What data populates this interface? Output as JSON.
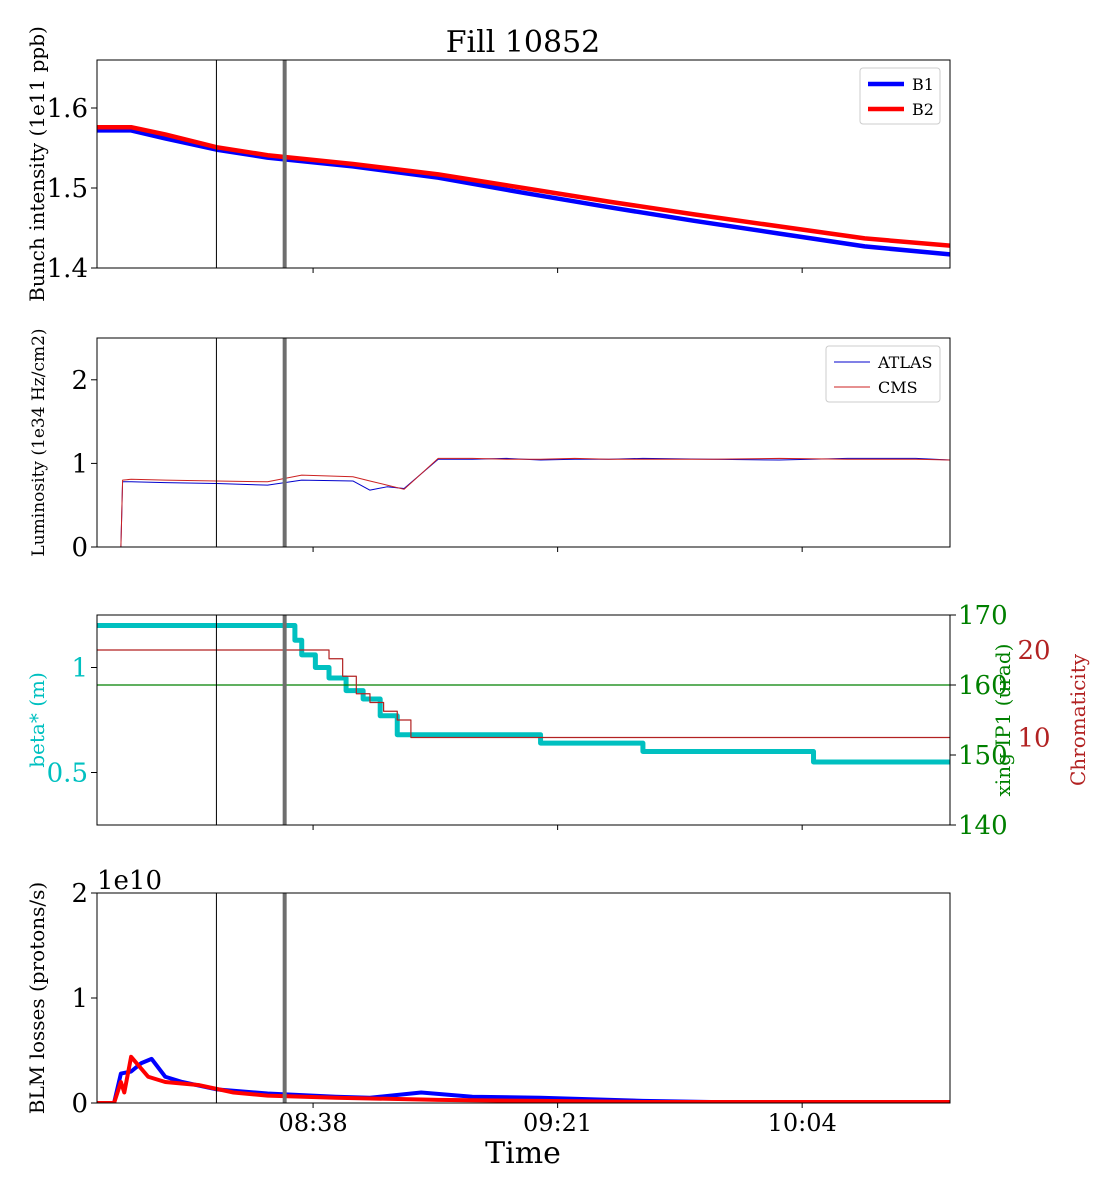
{
  "title": "Fill 10852",
  "xlabel": "Time",
  "x_ticks": [
    "08:38",
    "09:21",
    "10:04"
  ],
  "colors": {
    "b1": "#0000ff",
    "b2": "#ff0000",
    "atlas": "#0000cc",
    "cms": "#cc2222",
    "beta": "#00c0c0",
    "xing": "#008000",
    "chroma": "#b22222",
    "marker_thin": "#000000",
    "marker_thick": "#6e6e6e"
  },
  "chart_data": [
    {
      "type": "line",
      "panel": "intensity",
      "ylabel": "Bunch intensity (1e11 ppb)",
      "ylim": [
        1.4,
        1.66
      ],
      "yticks": [
        1.4,
        1.5,
        1.6
      ],
      "legend": "top-right",
      "series": [
        {
          "name": "B1",
          "x": [
            8.0,
            8.1,
            8.2,
            8.35,
            8.5,
            8.75,
            9.0,
            9.25,
            9.5,
            9.75,
            10.0,
            10.25,
            10.5
          ],
          "y": [
            1.572,
            1.572,
            1.562,
            1.548,
            1.538,
            1.527,
            1.513,
            1.494,
            1.476,
            1.459,
            1.443,
            1.427,
            1.417
          ]
        },
        {
          "name": "B2",
          "x": [
            8.0,
            8.1,
            8.2,
            8.35,
            8.5,
            8.75,
            9.0,
            9.25,
            9.5,
            9.75,
            10.0,
            10.25,
            10.5
          ],
          "y": [
            1.576,
            1.576,
            1.567,
            1.551,
            1.541,
            1.53,
            1.517,
            1.5,
            1.483,
            1.467,
            1.452,
            1.437,
            1.428
          ]
        }
      ]
    },
    {
      "type": "line",
      "panel": "luminosity",
      "ylabel": "Luminosity (1e34 Hz/cm2)",
      "ylim": [
        0,
        2.5
      ],
      "yticks": [
        0,
        1,
        2
      ],
      "legend": "top-right",
      "series": [
        {
          "name": "ATLAS",
          "x": [
            8.0,
            8.07,
            8.075,
            8.1,
            8.2,
            8.35,
            8.5,
            8.6,
            8.75,
            8.8,
            8.85,
            8.9,
            9.0,
            9.1,
            9.2,
            9.3,
            9.4,
            9.5,
            9.6,
            9.8,
            10.0,
            10.2,
            10.4,
            10.5
          ],
          "y": [
            0,
            0,
            0.78,
            0.78,
            0.77,
            0.76,
            0.74,
            0.8,
            0.79,
            0.68,
            0.72,
            0.7,
            1.05,
            1.05,
            1.06,
            1.04,
            1.05,
            1.05,
            1.06,
            1.05,
            1.04,
            1.06,
            1.06,
            1.04
          ]
        },
        {
          "name": "CMS",
          "x": [
            8.0,
            8.07,
            8.075,
            8.1,
            8.2,
            8.35,
            8.5,
            8.6,
            8.75,
            8.8,
            8.85,
            8.9,
            9.0,
            9.1,
            9.2,
            9.3,
            9.4,
            9.5,
            9.6,
            9.8,
            10.0,
            10.2,
            10.4,
            10.5
          ],
          "y": [
            0,
            0,
            0.8,
            0.81,
            0.8,
            0.79,
            0.78,
            0.86,
            0.84,
            0.79,
            0.74,
            0.69,
            1.06,
            1.06,
            1.05,
            1.05,
            1.06,
            1.05,
            1.05,
            1.05,
            1.06,
            1.05,
            1.05,
            1.04
          ]
        }
      ]
    },
    {
      "type": "line",
      "panel": "optics",
      "ylabel": "beta* (m)",
      "ylabel_right": "xing IP1 (urad)",
      "ylabel_right2": "Chromaticity",
      "ylim": [
        0.25,
        1.25
      ],
      "yticks": [
        0.5,
        1.0
      ],
      "ylim_right": [
        140,
        170
      ],
      "yticks_right": [
        140,
        150,
        160,
        170
      ],
      "ylim_right2": [
        0,
        24
      ],
      "yticks_right2": [
        10,
        20
      ],
      "series": [
        {
          "name": "beta*",
          "axis": "left",
          "step": true,
          "x": [
            8.0,
            8.55,
            8.58,
            8.6,
            8.64,
            8.68,
            8.73,
            8.78,
            8.83,
            8.88,
            9.3,
            9.6,
            10.1,
            10.5
          ],
          "y": [
            1.2,
            1.2,
            1.13,
            1.06,
            1.0,
            0.95,
            0.89,
            0.85,
            0.77,
            0.68,
            0.64,
            0.6,
            0.55,
            0.55
          ]
        },
        {
          "name": "xing IP1",
          "axis": "right",
          "step": true,
          "x": [
            8.0,
            10.5
          ],
          "y": [
            160,
            160
          ]
        },
        {
          "name": "Chromaticity",
          "axis": "right2",
          "step": true,
          "x": [
            8.0,
            8.55,
            8.68,
            8.72,
            8.76,
            8.8,
            8.84,
            8.88,
            8.92,
            10.5
          ],
          "y": [
            20,
            20,
            19,
            17,
            15,
            14,
            13,
            12,
            10,
            10
          ]
        }
      ]
    },
    {
      "type": "line",
      "panel": "losses",
      "ylabel": "BLM losses (protons/s)",
      "y_multiplier": "1e10",
      "ylim": [
        0,
        2
      ],
      "yticks": [
        0,
        1,
        2
      ],
      "series": [
        {
          "name": "B1",
          "x": [
            8.0,
            8.05,
            8.07,
            8.1,
            8.13,
            8.16,
            8.2,
            8.25,
            8.35,
            8.5,
            8.7,
            8.8,
            8.95,
            9.1,
            9.3,
            9.6,
            9.8,
            10.0,
            10.5
          ],
          "y": [
            0,
            0,
            0.28,
            0.3,
            0.38,
            0.42,
            0.25,
            0.2,
            0.13,
            0.09,
            0.06,
            0.05,
            0.1,
            0.06,
            0.05,
            0.02,
            0.01,
            0.01,
            0.01
          ]
        },
        {
          "name": "B2",
          "x": [
            8.0,
            8.05,
            8.07,
            8.08,
            8.1,
            8.15,
            8.2,
            8.3,
            8.4,
            8.5,
            8.7,
            9.0,
            9.3,
            9.6,
            10.0,
            10.5
          ],
          "y": [
            0,
            0,
            0.2,
            0.1,
            0.44,
            0.25,
            0.2,
            0.17,
            0.1,
            0.07,
            0.05,
            0.03,
            0.02,
            0.01,
            0.01,
            0.01
          ]
        }
      ]
    }
  ],
  "markers": {
    "thin_x": 8.35,
    "thick_x": 8.55
  },
  "x_range": [
    8.0,
    10.5
  ],
  "x_tick_values": [
    8.6333,
    9.35,
    10.0667
  ]
}
